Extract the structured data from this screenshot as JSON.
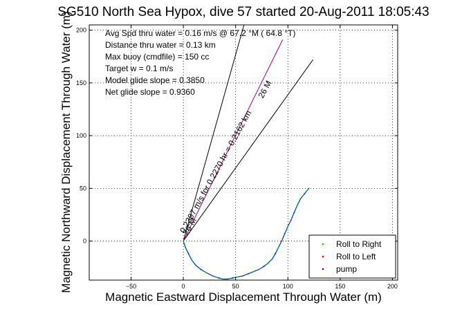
{
  "chart_data": {
    "type": "line",
    "title": "SG510 North Sea Hypox, dive 57 started 20-Aug-2011 18:05:43",
    "xlabel": "Magnetic Eastward Displacement Through Water (m)",
    "ylabel": "Magnetic Northward Displacement Through Water (m)",
    "xlim": [
      -90,
      205
    ],
    "ylim": [
      -37,
      205
    ],
    "xticks": [
      "−50",
      "0",
      "50",
      "100",
      "150",
      "200"
    ],
    "xtick_values": [
      -50,
      0,
      50,
      100,
      150,
      200
    ],
    "yticks": [
      "0",
      "50",
      "100",
      "150",
      "200"
    ],
    "ytick_values": [
      0,
      50,
      100,
      150,
      200
    ],
    "grid": true,
    "legend_position": "bottom-right",
    "annotations": [
      "Avg Spd thru water =  0.16 m/s @  67.2   °M ( 64.8 °T)",
      "Distance thru water =  0.13 km",
      "Max buoy (cmdfile) = 150 cc",
      "Target w = 0.1 m/s",
      "Model glide slope = 0.3850",
      "Net glide slope = 0.9360"
    ],
    "line_labels": [
      {
        "text": "0.2397 m/s for 0.2270 hr = 0.2162 km",
        "x": 1,
        "y": 7,
        "angle_deg": 61
      },
      {
        "text": "26 M",
        "x": 4,
        "y": 5,
        "angle_deg": 61
      },
      {
        "text": "26 M",
        "x": 76,
        "y": 135,
        "angle_deg": 61
      }
    ],
    "series": [
      {
        "name": "Roll to Right",
        "color": "#00cc00",
        "marker": "dot"
      },
      {
        "name": "Roll to Left",
        "color": "#ff0000",
        "marker": "dot"
      },
      {
        "name": "pump",
        "color": "#0000ff",
        "marker": "dot"
      }
    ],
    "reference_lines": [
      {
        "x": [
          0,
          58
        ],
        "y": [
          0,
          205
        ],
        "color": "#000000"
      },
      {
        "x": [
          0,
          124
        ],
        "y": [
          0,
          172
        ],
        "color": "#000000"
      },
      {
        "x": [
          0,
          95
        ],
        "y": [
          0,
          191
        ],
        "color": "#a0006a"
      }
    ],
    "track": {
      "color": "#005f9c",
      "x": [
        0,
        2,
        5,
        8,
        12,
        17,
        22,
        28,
        34,
        38,
        42,
        47,
        52,
        57,
        62,
        67,
        72,
        77,
        81,
        85,
        88,
        91,
        94,
        97,
        100,
        103,
        106,
        109,
        112,
        116,
        120
      ],
      "y": [
        0,
        -6,
        -12,
        -18,
        -23,
        -27,
        -30,
        -33,
        -35,
        -36,
        -36,
        -35,
        -34,
        -33,
        -31,
        -29,
        -27,
        -24,
        -21,
        -17,
        -12,
        -6,
        0,
        7,
        14,
        20,
        27,
        34,
        40,
        45,
        50
      ]
    }
  }
}
